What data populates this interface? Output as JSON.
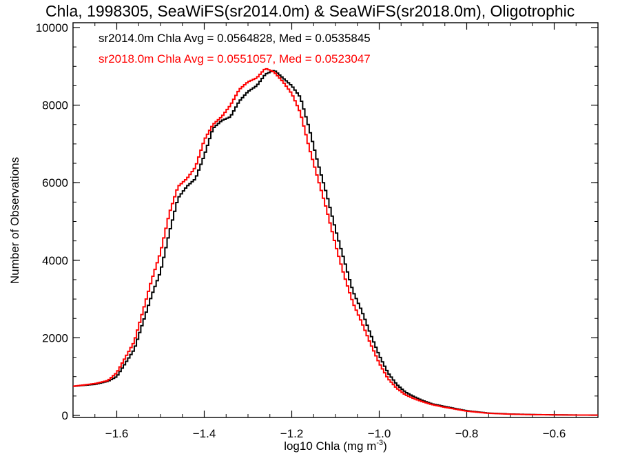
{
  "chart_data": {
    "type": "line",
    "title": "Chla, 1998305, SeaWiFS(sr2014.0m) & SeaWiFS(sr2018.0m), Oligotrophic",
    "xlabel": "log10 Chla (mg m",
    "xlabel_sup": "-3",
    "xlabel_close": ")",
    "ylabel": "Number of Observations",
    "xlim": [
      -1.7,
      -0.5
    ],
    "ylim": [
      0,
      10000
    ],
    "x_ticks": [
      -1.6,
      -1.4,
      -1.2,
      -1.0,
      -0.8,
      -0.6
    ],
    "x_tick_labels": [
      "−1.6",
      "−1.4",
      "−1.2",
      "−1.0",
      "−0.8",
      "−0.6"
    ],
    "y_ticks": [
      0,
      2000,
      4000,
      6000,
      8000,
      10000
    ],
    "y_tick_labels": [
      "0",
      "2000",
      "4000",
      "6000",
      "8000",
      "10000"
    ],
    "grid": false,
    "legend_placement": "top-left",
    "annotations": [
      "sr2014.0m Chla Avg = 0.0564828, Med = 0.0535845",
      "sr2018.0m Chla Avg = 0.0551057, Med = 0.0523047"
    ],
    "x": [
      -1.7,
      -1.65,
      -1.62,
      -1.6,
      -1.58,
      -1.56,
      -1.54,
      -1.52,
      -1.5,
      -1.48,
      -1.46,
      -1.44,
      -1.42,
      -1.4,
      -1.38,
      -1.36,
      -1.34,
      -1.32,
      -1.3,
      -1.28,
      -1.26,
      -1.24,
      -1.22,
      -1.2,
      -1.18,
      -1.16,
      -1.14,
      -1.12,
      -1.1,
      -1.08,
      -1.06,
      -1.04,
      -1.02,
      -1.0,
      -0.98,
      -0.96,
      -0.94,
      -0.92,
      -0.9,
      -0.88,
      -0.85,
      -0.8,
      -0.75,
      -0.7,
      -0.65,
      -0.6,
      -0.55,
      -0.5
    ],
    "series": [
      {
        "name": "sr2014.0m",
        "color": "#000000",
        "values": [
          750,
          800,
          880,
          1000,
          1350,
          1700,
          2400,
          3100,
          3700,
          4700,
          5600,
          5900,
          6100,
          6700,
          7400,
          7600,
          7700,
          8100,
          8350,
          8500,
          8800,
          8900,
          8700,
          8500,
          8200,
          7400,
          6500,
          5700,
          4800,
          4000,
          3200,
          2700,
          2100,
          1550,
          1100,
          800,
          600,
          480,
          380,
          300,
          230,
          120,
          60,
          35,
          22,
          15,
          10,
          8
        ]
      },
      {
        "name": "sr2018.0m",
        "color": "#ff0000",
        "values": [
          750,
          820,
          900,
          1100,
          1500,
          1900,
          2700,
          3500,
          4200,
          5200,
          5900,
          6100,
          6400,
          7100,
          7500,
          7700,
          8000,
          8400,
          8600,
          8700,
          8950,
          8850,
          8600,
          8300,
          7800,
          6900,
          6100,
          5300,
          4400,
          3600,
          2900,
          2400,
          1850,
          1350,
          950,
          700,
          530,
          430,
          350,
          280,
          210,
          110,
          55,
          32,
          20,
          14,
          9,
          7
        ]
      }
    ]
  }
}
